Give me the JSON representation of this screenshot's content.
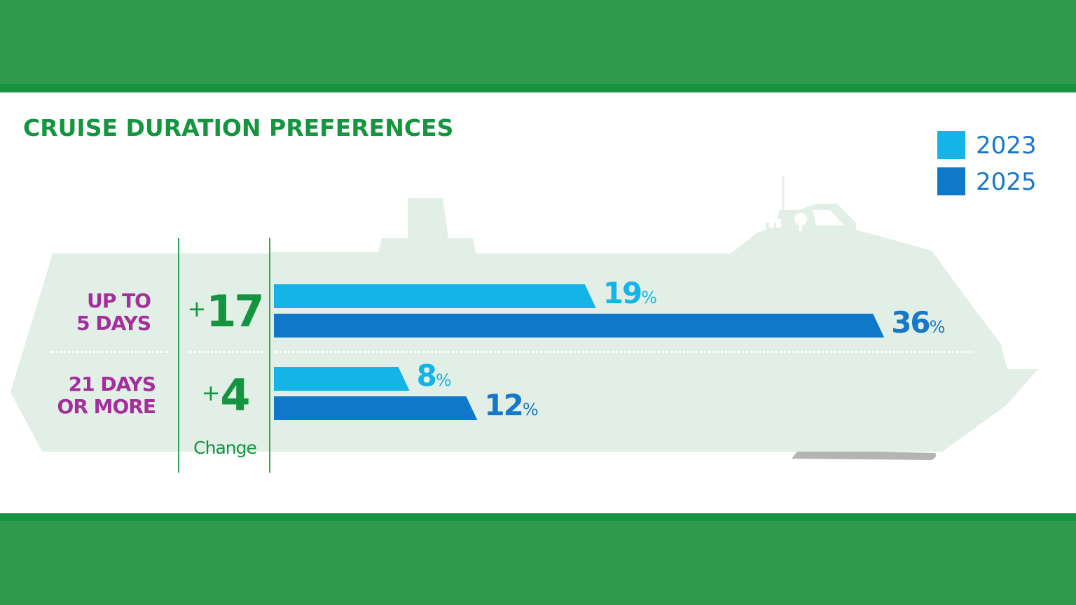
{
  "chart_data": {
    "type": "bar",
    "title": "CRUISE DURATION PREFERENCES",
    "categories": [
      "UP TO 5 DAYS",
      "21 DAYS OR MORE"
    ],
    "category_lines": [
      [
        "UP TO",
        "5 DAYS"
      ],
      [
        "21 DAYS",
        "OR MORE"
      ]
    ],
    "series": [
      {
        "name": "2023",
        "values": [
          19,
          8
        ],
        "color": "#14b4e6"
      },
      {
        "name": "2025",
        "values": [
          36,
          12
        ],
        "color": "#0f78c8"
      }
    ],
    "value_suffix": "%",
    "change": {
      "label": "Change",
      "sign": "+",
      "values": [
        17,
        4
      ]
    },
    "legend_position": "top-right",
    "orientation": "horizontal"
  },
  "colors": {
    "background_band": "#2e9a4c",
    "title": "#15953f",
    "category_label": "#a32e9c",
    "change": "#159440",
    "ship_silhouette": "#e1efe6",
    "label_2023": "#14b4e6",
    "label_2025": "#1878c6"
  }
}
